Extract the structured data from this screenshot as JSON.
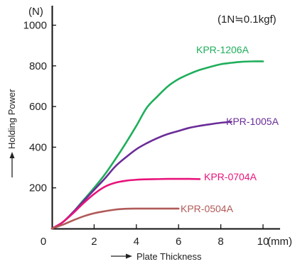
{
  "chart_data": {
    "type": "line",
    "title": "",
    "xlabel": "Plate Thickness",
    "ylabel": "Holding Power",
    "x_unit": "(mm)",
    "y_unit": "(N)",
    "note": "(1N≒0.1kgf)",
    "xlim": [
      0,
      11
    ],
    "ylim": [
      0,
      1080
    ],
    "x_ticks": [
      0,
      2,
      4,
      6,
      8,
      10
    ],
    "y_ticks": [
      200,
      400,
      600,
      800,
      1000
    ],
    "grid": false,
    "series": [
      {
        "name": "KPR-1206A",
        "color": "#1fae5b",
        "x": [
          0,
          0.5,
          1,
          1.5,
          2,
          2.5,
          3,
          3.5,
          4,
          4.5,
          5,
          5.5,
          6,
          6.5,
          7,
          7.5,
          8,
          8.5,
          9,
          9.5,
          10
        ],
        "y": [
          0,
          30,
          80,
          140,
          200,
          265,
          340,
          420,
          505,
          595,
          650,
          700,
          735,
          760,
          780,
          795,
          808,
          815,
          820,
          822,
          822
        ]
      },
      {
        "name": "KPR-1005A",
        "color": "#6a2c98",
        "x": [
          0,
          0.5,
          1,
          1.5,
          2,
          2.5,
          3,
          3.5,
          4,
          4.5,
          5,
          5.5,
          6,
          6.5,
          7,
          7.5,
          8,
          8.5
        ],
        "y": [
          0,
          30,
          80,
          135,
          190,
          245,
          305,
          350,
          390,
          420,
          445,
          465,
          480,
          495,
          505,
          513,
          520,
          525
        ]
      },
      {
        "name": "KPR-0704A",
        "color": "#e8137b",
        "x": [
          0,
          0.5,
          1,
          1.5,
          2,
          2.5,
          3,
          3.5,
          4,
          4.5,
          5,
          5.5,
          6,
          6.5,
          7
        ],
        "y": [
          0,
          30,
          75,
          125,
          170,
          205,
          225,
          235,
          240,
          242,
          243,
          244,
          244,
          244,
          243
        ]
      },
      {
        "name": "KPR-0504A",
        "color": "#b05a58",
        "x": [
          0,
          0.5,
          1,
          1.5,
          2,
          2.5,
          3,
          3.5,
          4,
          4.5,
          5,
          5.5,
          6
        ],
        "y": [
          0,
          18,
          40,
          60,
          75,
          85,
          93,
          97,
          98,
          98,
          98,
          98,
          98
        ]
      }
    ]
  }
}
